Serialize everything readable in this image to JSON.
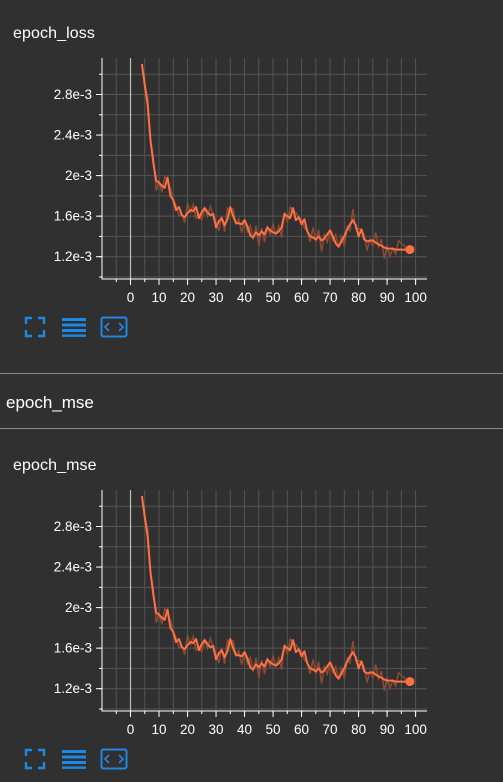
{
  "cards": [
    {
      "title": "epoch_loss"
    },
    {
      "title": "epoch_mse"
    }
  ],
  "section": {
    "title": "epoch_mse"
  },
  "toolbar": {
    "icons": [
      "fit-domain-icon",
      "toggle-log-scale-icon",
      "expand-chart-icon"
    ],
    "accent_color": "#1e88e5"
  },
  "colors": {
    "line": "#ff7043",
    "line_raw": "#8b4a35",
    "grid": "#555555",
    "axis": "#ffffff",
    "background": "#303030"
  },
  "chart_data": [
    {
      "type": "line",
      "title": "epoch_loss",
      "xlim": [
        -10,
        104
      ],
      "ylim": [
        0.00098,
        0.00316
      ],
      "x_ticks": [
        "0",
        "10",
        "20",
        "30",
        "40",
        "50",
        "60",
        "70",
        "80",
        "90",
        "100"
      ],
      "y_ticks": [
        "1.2e-3",
        "1.6e-3",
        "2e-3",
        "2.4e-3",
        "2.8e-3"
      ],
      "y_tick_values": [
        0.0012,
        0.0016,
        0.002,
        0.0024,
        0.0028
      ],
      "grid": true,
      "series": [
        {
          "values": [
            [
              4,
              0.0031
            ],
            [
              5,
              0.0029
            ],
            [
              6,
              0.0027
            ],
            [
              7,
              0.00235
            ],
            [
              8,
              0.00213
            ],
            [
              9,
              0.00195
            ],
            [
              10,
              0.00193
            ],
            [
              11,
              0.0019
            ],
            [
              12,
              0.00188
            ],
            [
              13,
              0.00198
            ],
            [
              14,
              0.0018
            ],
            [
              15,
              0.00176
            ],
            [
              16,
              0.00166
            ],
            [
              17,
              0.00169
            ],
            [
              18,
              0.00161
            ],
            [
              19,
              0.00159
            ],
            [
              20,
              0.00163
            ],
            [
              21,
              0.00166
            ],
            [
              22,
              0.00165
            ],
            [
              23,
              0.00169
            ],
            [
              24,
              0.00158
            ],
            [
              25,
              0.00164
            ],
            [
              26,
              0.00168
            ],
            [
              27,
              0.00164
            ],
            [
              28,
              0.00161
            ],
            [
              29,
              0.00162
            ],
            [
              30,
              0.00149
            ],
            [
              31,
              0.00155
            ],
            [
              32,
              0.00158
            ],
            [
              33,
              0.00151
            ],
            [
              34,
              0.00157
            ],
            [
              35,
              0.00169
            ],
            [
              36,
              0.0016
            ],
            [
              37,
              0.00153
            ],
            [
              38,
              0.00153
            ],
            [
              39,
              0.00152
            ],
            [
              40,
              0.00156
            ],
            [
              41,
              0.0015
            ],
            [
              42,
              0.00141
            ],
            [
              43,
              0.00139
            ],
            [
              44,
              0.00144
            ],
            [
              45,
              0.00141
            ],
            [
              46,
              0.00145
            ],
            [
              47,
              0.00142
            ],
            [
              48,
              0.00149
            ],
            [
              49,
              0.00146
            ],
            [
              50,
              0.00144
            ],
            [
              51,
              0.00143
            ],
            [
              52,
              0.00145
            ],
            [
              53,
              0.00149
            ],
            [
              54,
              0.00162
            ],
            [
              55,
              0.0016
            ],
            [
              56,
              0.00158
            ],
            [
              57,
              0.00168
            ],
            [
              58,
              0.00156
            ],
            [
              59,
              0.00159
            ],
            [
              60,
              0.00152
            ],
            [
              61,
              0.00157
            ],
            [
              62,
              0.00145
            ],
            [
              63,
              0.0014
            ],
            [
              64,
              0.00139
            ],
            [
              65,
              0.00137
            ],
            [
              66,
              0.0014
            ],
            [
              67,
              0.00136
            ],
            [
              68,
              0.00138
            ],
            [
              69,
              0.00142
            ],
            [
              70,
              0.00146
            ],
            [
              71,
              0.0014
            ],
            [
              72,
              0.00133
            ],
            [
              73,
              0.0013
            ],
            [
              74,
              0.00135
            ],
            [
              75,
              0.0014
            ],
            [
              76,
              0.00147
            ],
            [
              77,
              0.00152
            ],
            [
              78,
              0.00156
            ],
            [
              79,
              0.00151
            ],
            [
              80,
              0.0014
            ],
            [
              81,
              0.00147
            ],
            [
              82,
              0.00137
            ],
            [
              83,
              0.00135
            ],
            [
              84,
              0.00136
            ],
            [
              85,
              0.00136
            ],
            [
              86,
              0.00134
            ],
            [
              87,
              0.00132
            ],
            [
              88,
              0.00131
            ],
            [
              89,
              0.00129
            ],
            [
              90,
              0.00128
            ],
            [
              91,
              0.00128
            ],
            [
              92,
              0.00128
            ],
            [
              93,
              0.00127
            ],
            [
              94,
              0.00127
            ],
            [
              98,
              0.00127
            ]
          ]
        }
      ]
    },
    {
      "type": "line",
      "title": "epoch_mse",
      "xlim": [
        -10,
        104
      ],
      "ylim": [
        0.00098,
        0.00316
      ],
      "x_ticks": [
        "0",
        "10",
        "20",
        "30",
        "40",
        "50",
        "60",
        "70",
        "80",
        "90",
        "100"
      ],
      "y_ticks": [
        "1.2e-3",
        "1.6e-3",
        "2e-3",
        "2.4e-3",
        "2.8e-3"
      ],
      "y_tick_values": [
        0.0012,
        0.0016,
        0.002,
        0.0024,
        0.0028
      ],
      "grid": true,
      "series": [
        {
          "values": [
            [
              4,
              0.0031
            ],
            [
              5,
              0.0029
            ],
            [
              6,
              0.0027
            ],
            [
              7,
              0.00235
            ],
            [
              8,
              0.00213
            ],
            [
              9,
              0.00195
            ],
            [
              10,
              0.00193
            ],
            [
              11,
              0.0019
            ],
            [
              12,
              0.00188
            ],
            [
              13,
              0.00198
            ],
            [
              14,
              0.0018
            ],
            [
              15,
              0.00176
            ],
            [
              16,
              0.00166
            ],
            [
              17,
              0.00169
            ],
            [
              18,
              0.00161
            ],
            [
              19,
              0.00159
            ],
            [
              20,
              0.00163
            ],
            [
              21,
              0.00166
            ],
            [
              22,
              0.00165
            ],
            [
              23,
              0.00169
            ],
            [
              24,
              0.00158
            ],
            [
              25,
              0.00164
            ],
            [
              26,
              0.00168
            ],
            [
              27,
              0.00164
            ],
            [
              28,
              0.00161
            ],
            [
              29,
              0.00162
            ],
            [
              30,
              0.00149
            ],
            [
              31,
              0.00155
            ],
            [
              32,
              0.00158
            ],
            [
              33,
              0.00151
            ],
            [
              34,
              0.00157
            ],
            [
              35,
              0.00169
            ],
            [
              36,
              0.0016
            ],
            [
              37,
              0.00153
            ],
            [
              38,
              0.00153
            ],
            [
              39,
              0.00152
            ],
            [
              40,
              0.00156
            ],
            [
              41,
              0.0015
            ],
            [
              42,
              0.00141
            ],
            [
              43,
              0.00139
            ],
            [
              44,
              0.00144
            ],
            [
              45,
              0.00141
            ],
            [
              46,
              0.00145
            ],
            [
              47,
              0.00142
            ],
            [
              48,
              0.00149
            ],
            [
              49,
              0.00146
            ],
            [
              50,
              0.00144
            ],
            [
              51,
              0.00143
            ],
            [
              52,
              0.00145
            ],
            [
              53,
              0.00149
            ],
            [
              54,
              0.00162
            ],
            [
              55,
              0.0016
            ],
            [
              56,
              0.00158
            ],
            [
              57,
              0.00168
            ],
            [
              58,
              0.00156
            ],
            [
              59,
              0.00159
            ],
            [
              60,
              0.00152
            ],
            [
              61,
              0.00157
            ],
            [
              62,
              0.00145
            ],
            [
              63,
              0.0014
            ],
            [
              64,
              0.00139
            ],
            [
              65,
              0.00137
            ],
            [
              66,
              0.0014
            ],
            [
              67,
              0.00136
            ],
            [
              68,
              0.00138
            ],
            [
              69,
              0.00142
            ],
            [
              70,
              0.00146
            ],
            [
              71,
              0.0014
            ],
            [
              72,
              0.00133
            ],
            [
              73,
              0.0013
            ],
            [
              74,
              0.00135
            ],
            [
              75,
              0.0014
            ],
            [
              76,
              0.00147
            ],
            [
              77,
              0.00152
            ],
            [
              78,
              0.00156
            ],
            [
              79,
              0.00151
            ],
            [
              80,
              0.0014
            ],
            [
              81,
              0.00147
            ],
            [
              82,
              0.00137
            ],
            [
              83,
              0.00135
            ],
            [
              84,
              0.00136
            ],
            [
              85,
              0.00136
            ],
            [
              86,
              0.00134
            ],
            [
              87,
              0.00132
            ],
            [
              88,
              0.00131
            ],
            [
              89,
              0.00129
            ],
            [
              90,
              0.00128
            ],
            [
              91,
              0.00128
            ],
            [
              92,
              0.00128
            ],
            [
              93,
              0.00127
            ],
            [
              94,
              0.00127
            ],
            [
              98,
              0.00127
            ]
          ]
        }
      ]
    }
  ]
}
